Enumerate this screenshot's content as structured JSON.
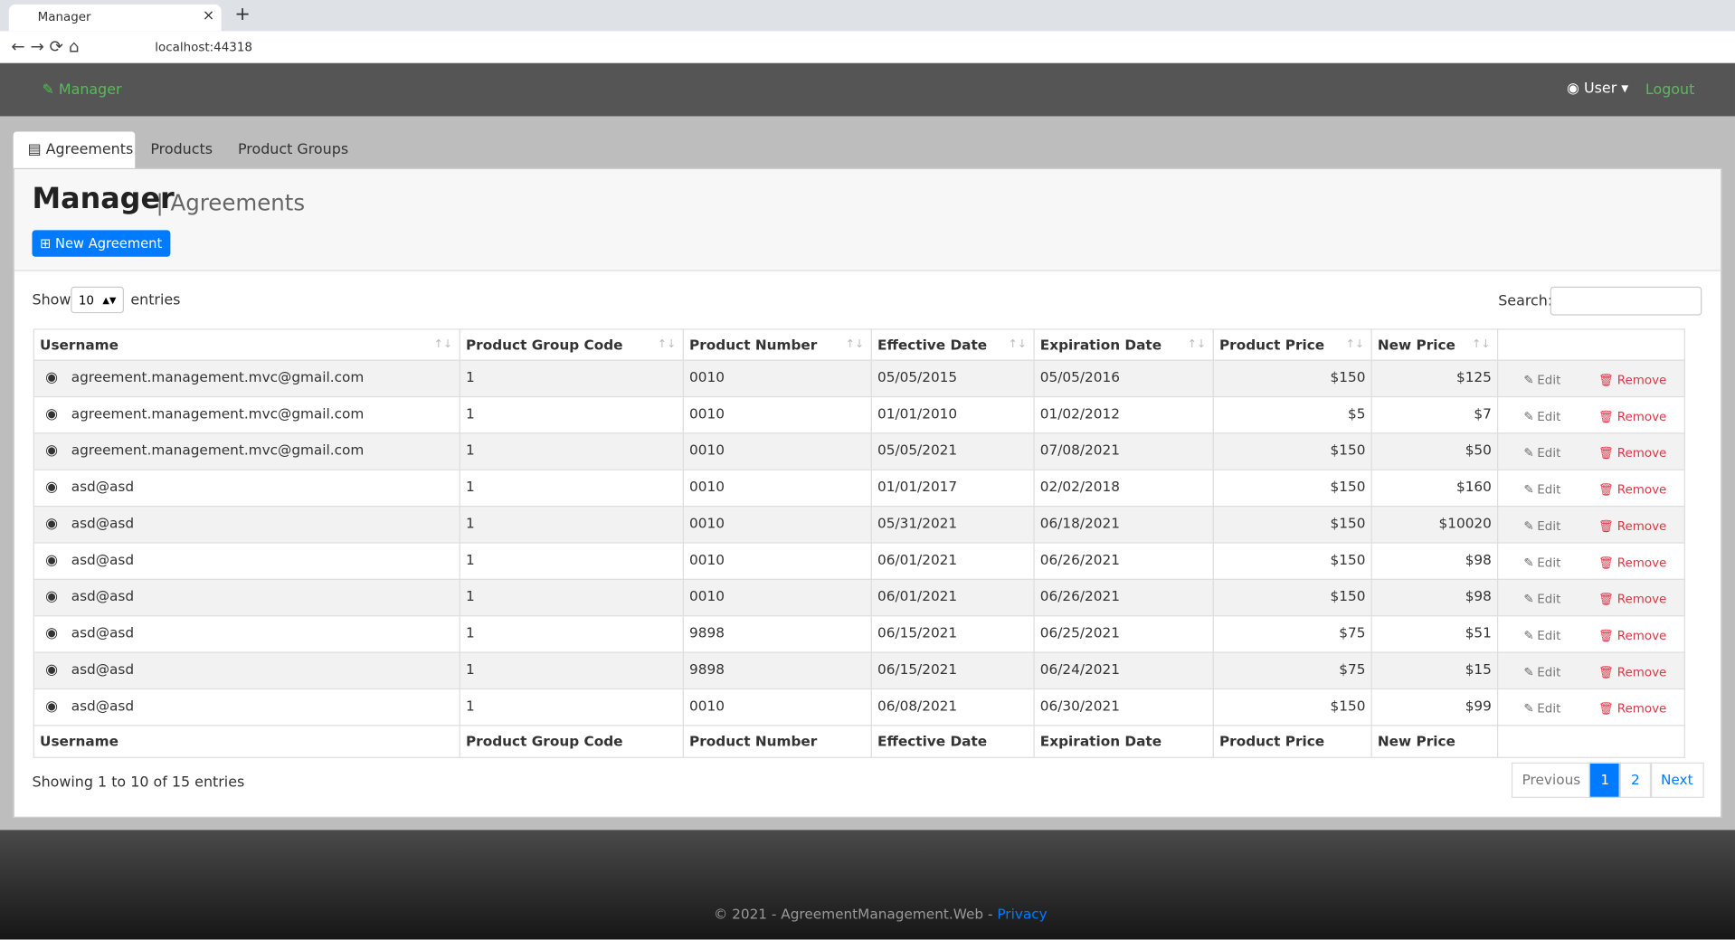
{
  "browser": {
    "tab_title": "Manager",
    "url": "localhost:44318"
  },
  "navbar": {
    "brand": "Manager",
    "user": "User",
    "logout": "Logout"
  },
  "tabs": [
    "Agreements",
    "Products",
    "Product Groups"
  ],
  "header": {
    "title": "Manager",
    "subtitle": "| Agreements",
    "new_button": "New Agreement"
  },
  "controls": {
    "show": "Show",
    "page_size": "10",
    "entries": "entries",
    "search": "Search:"
  },
  "table": {
    "columns": [
      "Username",
      "Product Group Code",
      "Product Number",
      "Effective Date",
      "Expiration Date",
      "Product Price",
      "New Price"
    ],
    "actions": {
      "edit": "Edit",
      "remove": "Remove"
    },
    "rows": [
      [
        "agreement.management.mvc@gmail.com",
        "1",
        "0010",
        "05/05/2015",
        "05/05/2016",
        "$150",
        "$125"
      ],
      [
        "agreement.management.mvc@gmail.com",
        "1",
        "0010",
        "01/01/2010",
        "01/02/2012",
        "$5",
        "$7"
      ],
      [
        "agreement.management.mvc@gmail.com",
        "1",
        "0010",
        "05/05/2021",
        "07/08/2021",
        "$150",
        "$50"
      ],
      [
        "asd@asd",
        "1",
        "0010",
        "01/01/2017",
        "02/02/2018",
        "$150",
        "$160"
      ],
      [
        "asd@asd",
        "1",
        "0010",
        "05/31/2021",
        "06/18/2021",
        "$150",
        "$10020"
      ],
      [
        "asd@asd",
        "1",
        "0010",
        "06/01/2021",
        "06/26/2021",
        "$150",
        "$98"
      ],
      [
        "asd@asd",
        "1",
        "0010",
        "06/01/2021",
        "06/26/2021",
        "$150",
        "$98"
      ],
      [
        "asd@asd",
        "1",
        "9898",
        "06/15/2021",
        "06/25/2021",
        "$75",
        "$51"
      ],
      [
        "asd@asd",
        "1",
        "9898",
        "06/15/2021",
        "06/24/2021",
        "$75",
        "$15"
      ],
      [
        "asd@asd",
        "1",
        "0010",
        "06/08/2021",
        "06/30/2021",
        "$150",
        "$99"
      ]
    ]
  },
  "info": "Showing 1 to 10 of 15 entries",
  "pagination": [
    "Previous",
    "1",
    "2",
    "Next"
  ],
  "footer": {
    "text": "© 2021 - AgreementManagement.Web -",
    "link": "Privacy"
  }
}
